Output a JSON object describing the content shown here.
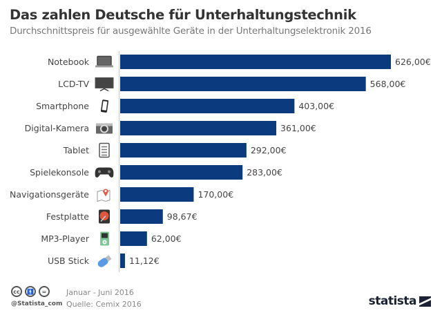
{
  "header": {
    "title": "Das zahlen Deutsche für Unterhaltungstechnik",
    "subtitle": "Durchschnittspreis für ausgewählte Geräte in der Unterhaltungselektronik 2016"
  },
  "chart_data": {
    "type": "bar",
    "orientation": "horizontal",
    "title": "Das zahlen Deutsche für Unterhaltungstechnik",
    "subtitle": "Durchschnittspreis für ausgewählte Geräte in der Unterhaltungselektronik 2016",
    "xlabel": "",
    "ylabel": "",
    "categories": [
      "Notebook",
      "LCD-TV",
      "Smartphone",
      "Digital-Kamera",
      "Tablet",
      "Spielekonsole",
      "Navigationsgeräte",
      "Festplatte",
      "MP3-Player",
      "USB Stick"
    ],
    "values": [
      626.0,
      568.0,
      403.0,
      361.0,
      292.0,
      283.0,
      170.0,
      98.67,
      62.0,
      11.12
    ],
    "value_labels": [
      "626,00€",
      "568,00€",
      "403,00€",
      "361,00€",
      "292,00€",
      "283,00€",
      "170,00€",
      "98,67€",
      "62,00€",
      "11,12€"
    ],
    "icons": [
      "laptop-icon",
      "tv-icon",
      "smartphone-icon",
      "camera-icon",
      "tablet-icon",
      "gamepad-icon",
      "map-pin-icon",
      "hard-drive-icon",
      "mp3-player-icon",
      "usb-stick-icon"
    ],
    "xlim": [
      0,
      626
    ],
    "grid": false,
    "bar_color": "#0b3a7e",
    "unit": "€"
  },
  "footer": {
    "period": "Januar - Juni 2016",
    "source": "Quelle: Cemix 2016",
    "handle": "@Statista_com",
    "license_icons": [
      "cc",
      "by",
      "="
    ],
    "logo": "statista"
  }
}
